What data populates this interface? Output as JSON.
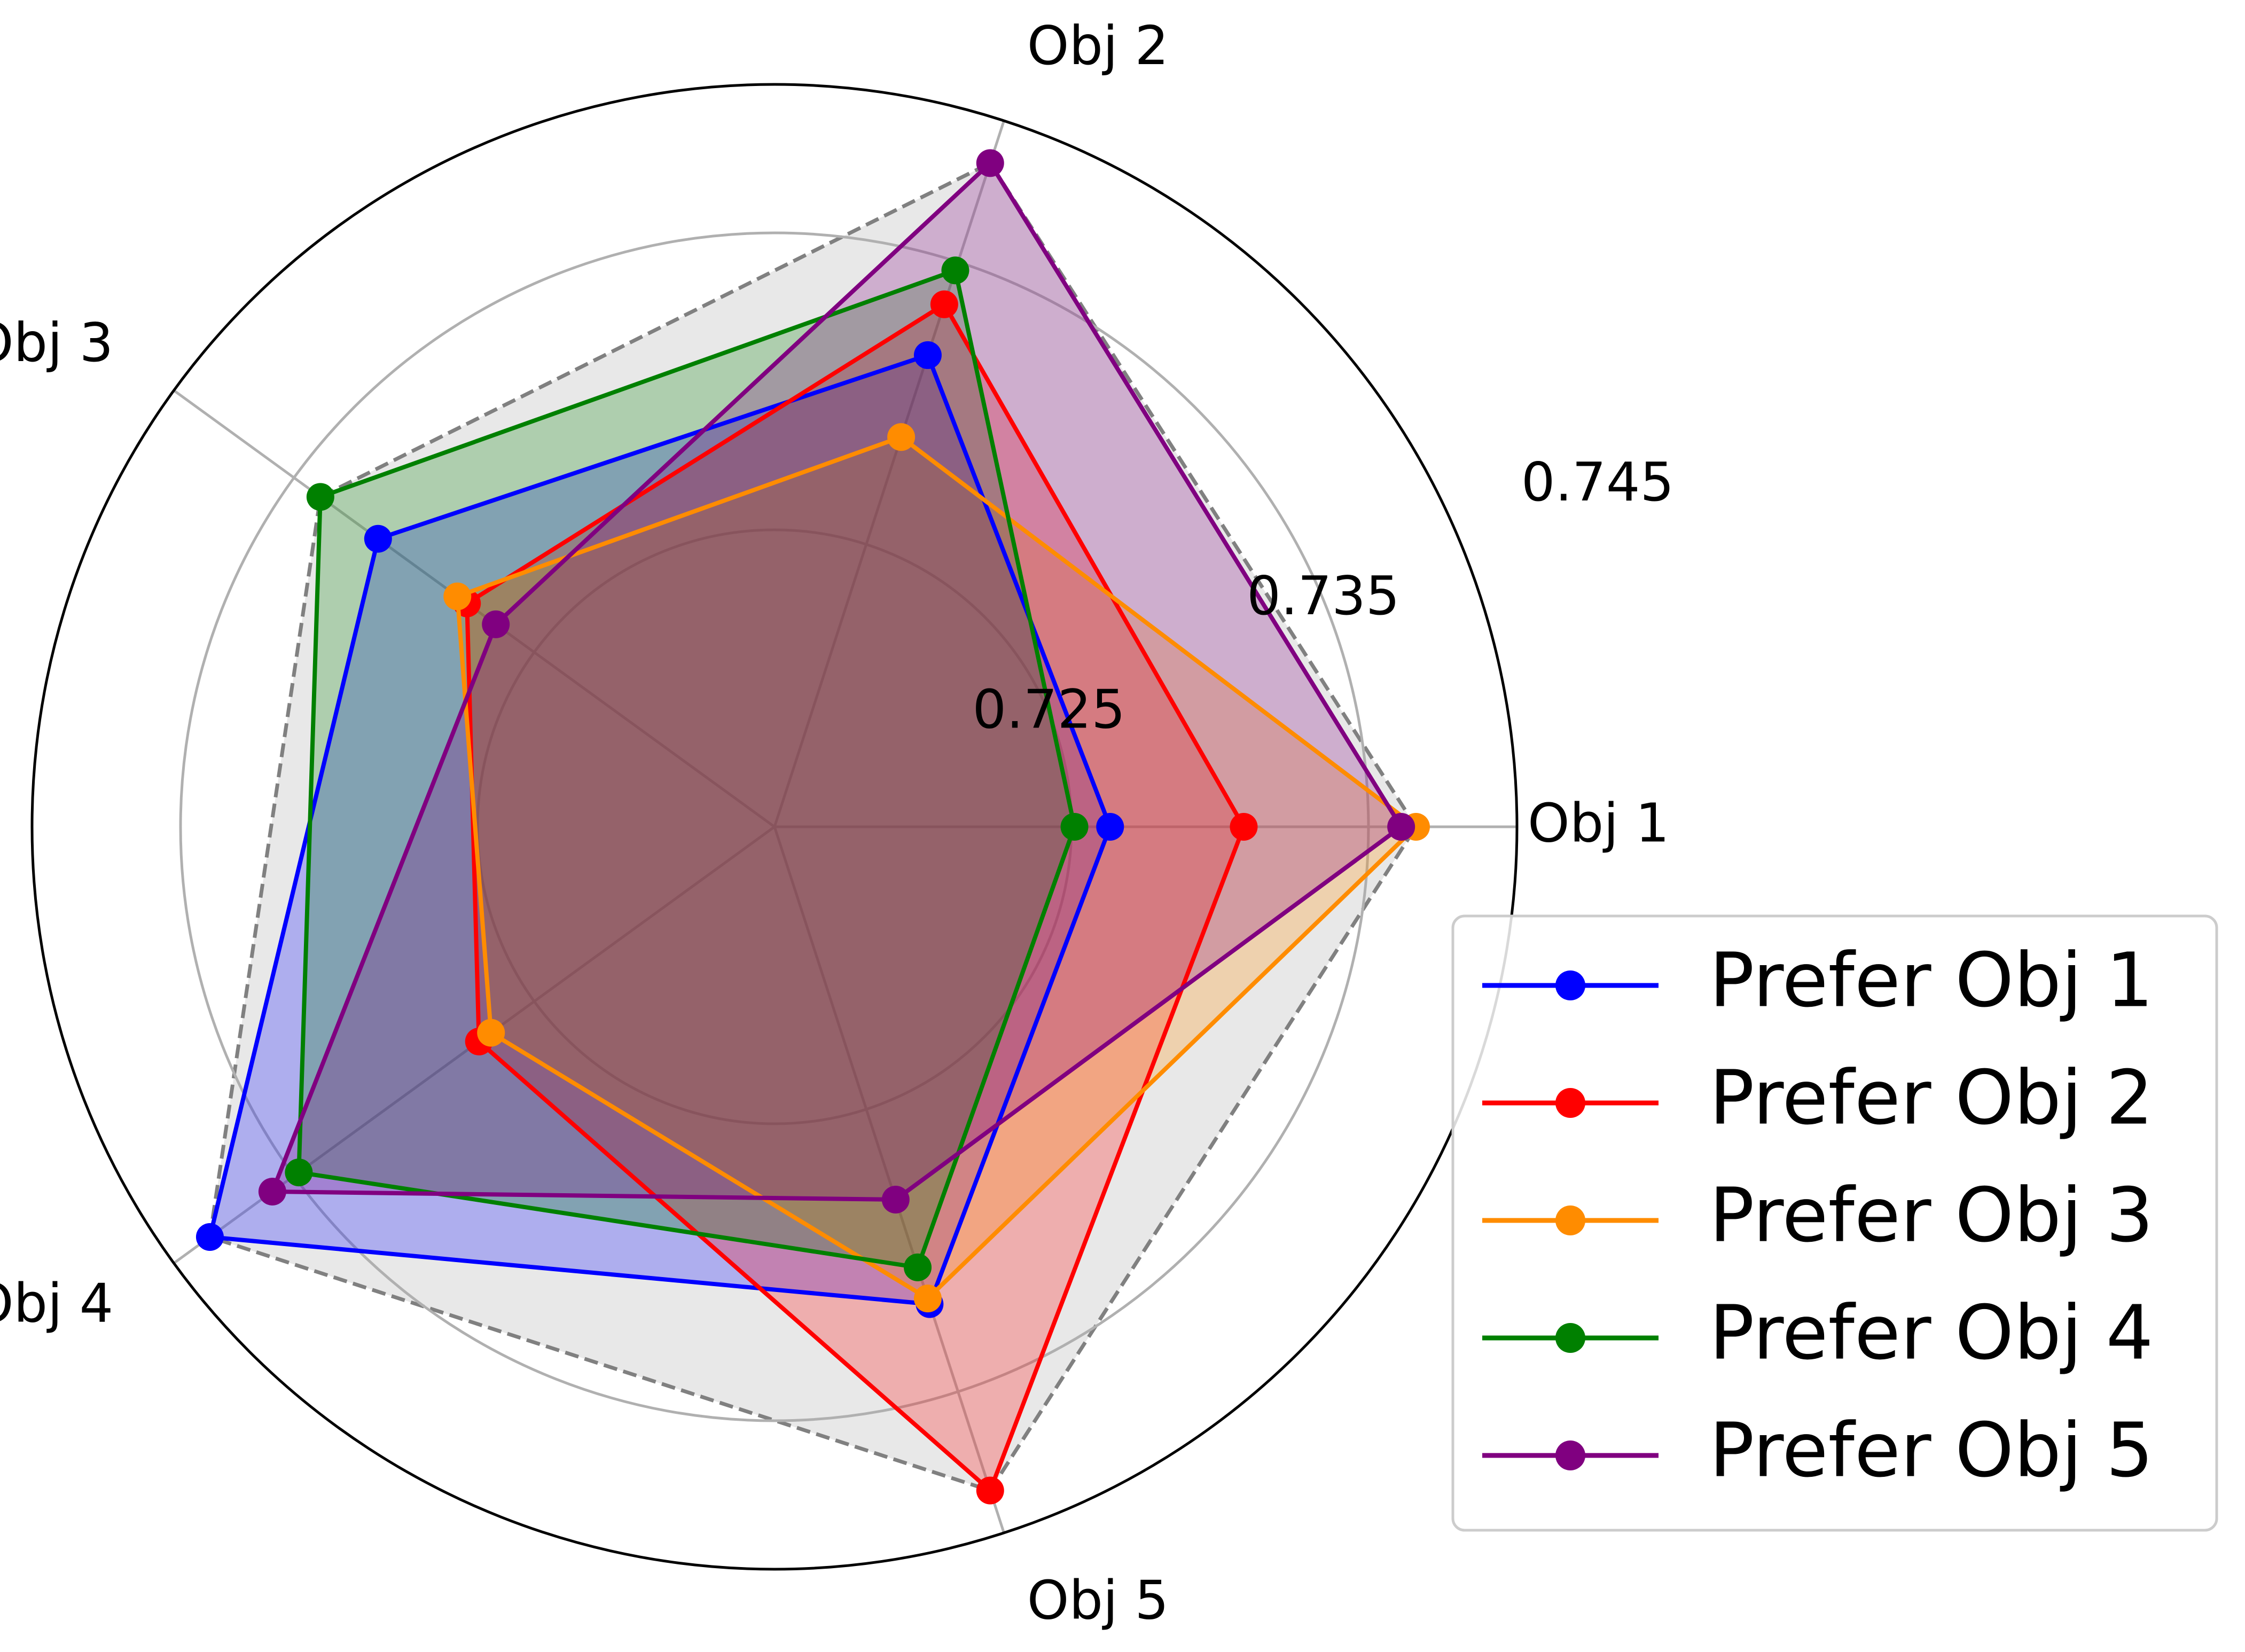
{
  "chart_data": {
    "type": "radar",
    "axes": [
      "Obj 1",
      "Obj 2",
      "Obj 3",
      "Obj 4",
      "Obj 5"
    ],
    "radial_ticks": [
      "0.725",
      "0.735",
      "0.745"
    ],
    "radial_tick_values": [
      0.725,
      0.735,
      0.745
    ],
    "rlim": [
      0.715,
      0.74
    ],
    "grid": true,
    "legend_position": "lower-right",
    "series": [
      {
        "name": "Prefer Obj 1",
        "color": "#0000ff",
        "values": [
          0.7263,
          0.7317,
          0.7315,
          0.7385,
          0.7319
        ]
      },
      {
        "name": "Prefer Obj 2",
        "color": "#ff0000",
        "values": [
          0.7308,
          0.7335,
          0.7278,
          0.7273,
          0.7385
        ]
      },
      {
        "name": "Prefer Obj 3",
        "color": "#ff8c00",
        "values": [
          0.7366,
          0.7288,
          0.7282,
          0.7268,
          0.7317
        ]
      },
      {
        "name": "Prefer Obj 4",
        "color": "#008000",
        "values": [
          0.7251,
          0.7347,
          0.7339,
          0.7348,
          0.7306
        ]
      },
      {
        "name": "Prefer Obj 5",
        "color": "#800080",
        "values": [
          0.7361,
          0.7385,
          0.7266,
          0.7359,
          0.7282
        ]
      }
    ],
    "envelope": {
      "color": "#808080",
      "fill": "#e8e8e8",
      "style": "dashed"
    }
  }
}
